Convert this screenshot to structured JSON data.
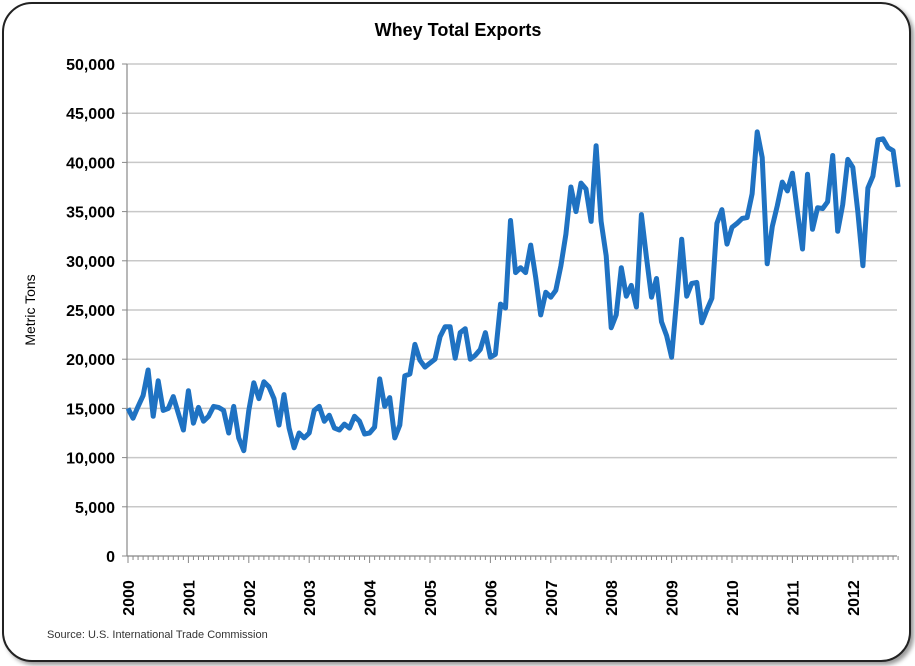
{
  "chart_data": {
    "type": "line",
    "title": "Whey Total Exports",
    "xlabel": "",
    "ylabel": "Metric Tons",
    "source": "Source:  U.S. International Trade Commission",
    "ylim": [
      0,
      50000
    ],
    "yticks": [
      0,
      5000,
      10000,
      15000,
      20000,
      25000,
      30000,
      35000,
      40000,
      45000,
      50000
    ],
    "ytick_labels": [
      "0",
      "5,000",
      "10,000",
      "15,000",
      "20,000",
      "25,000",
      "30,000",
      "35,000",
      "40,000",
      "45,000",
      "50,000"
    ],
    "xtick_labels": [
      "2000",
      "2001",
      "2002",
      "2003",
      "2004",
      "2005",
      "2006",
      "2007",
      "2008",
      "2009",
      "2010",
      "2011",
      "2012"
    ],
    "x_start": "2000-01",
    "x_frequency": "monthly",
    "grid": true,
    "line_color": "#1F72C2",
    "series": [
      {
        "values": [
          15000,
          14000,
          15200,
          16300,
          18900,
          14200,
          17800,
          14800,
          15000,
          16200,
          14500,
          12800,
          16800,
          13500,
          15100,
          13700,
          14200,
          15200,
          15100,
          14800,
          12500,
          15200,
          12000,
          10700,
          14800,
          17600,
          16000,
          17700,
          17200,
          16000,
          13300,
          16400,
          13000,
          11000,
          12500,
          12000,
          12500,
          14800,
          15200,
          13700,
          14300,
          13000,
          12800,
          13400,
          13000,
          14200,
          13700,
          12400,
          12500,
          13100,
          18000,
          15200,
          16100,
          12000,
          13300,
          18300,
          18500,
          21500,
          19900,
          19200,
          19600,
          20000,
          22300,
          23300,
          23300,
          20100,
          22700,
          23100,
          20000,
          20400,
          21000,
          22700,
          20200,
          20500,
          25600,
          25200,
          34100,
          28800,
          29300,
          28800,
          31600,
          28300,
          24500,
          26800,
          26300,
          27000,
          29500,
          32700,
          37500,
          35000,
          37900,
          37300,
          34000,
          41700,
          34000,
          30500,
          23200,
          24500,
          29300,
          26400,
          27500,
          25300,
          34700,
          30400,
          26300,
          28200,
          23800,
          22400,
          20200,
          26000,
          32200,
          26400,
          27700,
          27800,
          23700,
          25000,
          26200,
          33800,
          35200,
          31700,
          33400,
          33800,
          34300,
          34400,
          36800,
          43100,
          40500,
          29700,
          33500,
          35600,
          38000,
          37100,
          38900,
          35000,
          31200,
          38800,
          33200,
          35400,
          35300,
          36000,
          40700,
          33000,
          35700,
          40300,
          39500,
          35000,
          29500,
          37400,
          38600,
          42300,
          42400,
          41500,
          41200,
          37500
        ]
      }
    ]
  }
}
